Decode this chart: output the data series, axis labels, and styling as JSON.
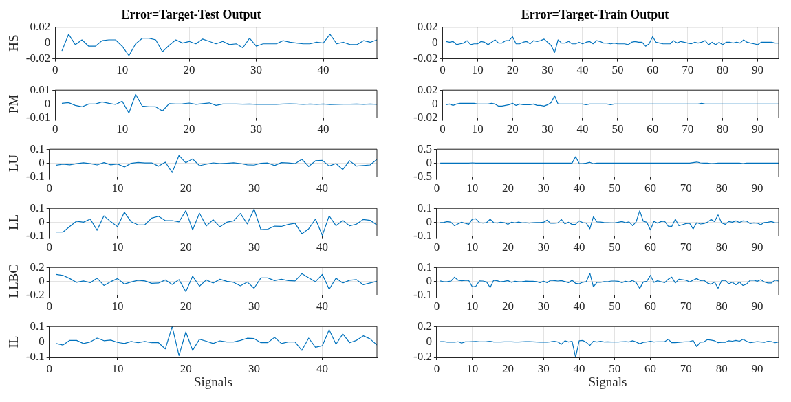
{
  "chart_data": [
    {
      "type": "line",
      "title": "Error=Target-Test Output",
      "ylabel": "HS",
      "color": "#0072bd",
      "grid": true,
      "xlim": [
        0,
        48
      ],
      "xticks": [
        0,
        10,
        20,
        30,
        40
      ],
      "ylim": [
        -0.02,
        0.02
      ],
      "yticks": [
        -0.02,
        0,
        0.02
      ],
      "x": [
        1,
        2,
        3,
        4,
        5,
        6,
        7,
        8,
        9,
        10,
        11,
        12,
        13,
        14,
        15,
        16,
        17,
        18,
        19,
        20,
        21,
        22,
        23,
        24,
        25,
        26,
        27,
        28,
        29,
        30,
        31,
        32,
        33,
        34,
        35,
        36,
        37,
        38,
        39,
        40,
        41,
        42,
        43,
        44,
        45,
        46,
        47,
        48
      ],
      "values": [
        -0.01,
        0.011,
        -0.002,
        0.004,
        -0.004,
        -0.004,
        0.003,
        0.004,
        0.004,
        -0.004,
        -0.016,
        -0.001,
        0.006,
        0.006,
        0.004,
        -0.011,
        -0.003,
        0.004,
        0,
        0.002,
        -0.001,
        0.005,
        0.002,
        -0.001,
        0.002,
        -0.002,
        -0.001,
        -0.006,
        0.006,
        -0.004,
        -0.001,
        -0.001,
        -0.001,
        0.003,
        0.001,
        0,
        -0.001,
        -0.001,
        0.001,
        0,
        0.011,
        -0.001,
        0.001,
        -0.002,
        -0.002,
        0.003,
        0.001,
        0.004
      ]
    },
    {
      "type": "line",
      "ylabel": "PM",
      "color": "#0072bd",
      "grid": true,
      "xlim": [
        0,
        48
      ],
      "xticks": [
        0,
        10,
        20,
        30,
        40
      ],
      "ylim": [
        -0.01,
        0.01
      ],
      "yticks": [
        -0.01,
        0,
        0.01
      ],
      "x": [
        1,
        2,
        3,
        4,
        5,
        6,
        7,
        8,
        9,
        10,
        11,
        12,
        13,
        14,
        15,
        16,
        17,
        18,
        19,
        20,
        21,
        22,
        23,
        24,
        25,
        26,
        27,
        28,
        29,
        30,
        31,
        32,
        33,
        34,
        35,
        36,
        37,
        38,
        39,
        40,
        41,
        42,
        43,
        44,
        45,
        46,
        47,
        48
      ],
      "values": [
        0.0005,
        0.001,
        -0.001,
        -0.002,
        0,
        0,
        0.0015,
        0.0005,
        -0.0003,
        0.002,
        -0.0065,
        0.007,
        -0.0015,
        -0.002,
        -0.002,
        -0.005,
        0.0003,
        0,
        0.0002,
        0.0007,
        -0.0002,
        0.0003,
        0.0008,
        -0.001,
        0,
        0,
        0,
        -0.0001,
        0,
        -0.0002,
        -0.0002,
        -0.0003,
        -0.0002,
        0,
        0.0001,
        0,
        -0.0003,
        0,
        -0.0002,
        0,
        -0.0004,
        -0.0003,
        -0.0001,
        -0.0001,
        0,
        -0.0002,
        0,
        -0.0002
      ]
    },
    {
      "type": "line",
      "ylabel": "LU",
      "color": "#0072bd",
      "grid": true,
      "xlim": [
        0,
        48
      ],
      "xticks": [
        0,
        10,
        20,
        30,
        40
      ],
      "ylim": [
        -0.1,
        0.1
      ],
      "yticks": [
        -0.1,
        0,
        0.1
      ],
      "x": [
        1,
        2,
        3,
        4,
        5,
        6,
        7,
        8,
        9,
        10,
        11,
        12,
        13,
        14,
        15,
        16,
        17,
        18,
        19,
        20,
        21,
        22,
        23,
        24,
        25,
        26,
        27,
        28,
        29,
        30,
        31,
        32,
        33,
        34,
        35,
        36,
        37,
        38,
        39,
        40,
        41,
        42,
        43,
        44,
        45,
        46,
        47,
        48
      ],
      "values": [
        -0.015,
        -0.008,
        -0.012,
        -0.004,
        0.003,
        -0.004,
        -0.013,
        0.004,
        -0.012,
        -0.006,
        -0.028,
        -0.001,
        0.005,
        0.001,
        0.002,
        -0.022,
        0.007,
        -0.068,
        0.055,
        0.003,
        0.03,
        -0.018,
        -0.008,
        0.002,
        -0.004,
        -0.001,
        0.003,
        -0.003,
        -0.012,
        -0.014,
        -0.001,
        0.001,
        -0.017,
        0.004,
        0.001,
        -0.004,
        0.028,
        -0.024,
        0.017,
        0.02,
        -0.021,
        -0.003,
        -0.046,
        0.017,
        -0.021,
        -0.017,
        -0.013,
        0.027
      ]
    },
    {
      "type": "line",
      "ylabel": "LL",
      "color": "#0072bd",
      "grid": true,
      "xlim": [
        0,
        48
      ],
      "xticks": [
        0,
        10,
        20,
        30,
        40
      ],
      "ylim": [
        -0.1,
        0.1
      ],
      "yticks": [
        -0.1,
        0,
        0.1
      ],
      "x": [
        1,
        2,
        3,
        4,
        5,
        6,
        7,
        8,
        9,
        10,
        11,
        12,
        13,
        14,
        15,
        16,
        17,
        18,
        19,
        20,
        21,
        22,
        23,
        24,
        25,
        26,
        27,
        28,
        29,
        30,
        31,
        32,
        33,
        34,
        35,
        36,
        37,
        38,
        39,
        40,
        41,
        42,
        43,
        44,
        45,
        46,
        47,
        48
      ],
      "values": [
        -0.07,
        -0.071,
        -0.03,
        0.008,
        0,
        0.023,
        -0.058,
        0.046,
        0.004,
        -0.032,
        0.072,
        0.003,
        -0.019,
        -0.018,
        0.03,
        0.043,
        0.012,
        0.012,
        0.003,
        0.083,
        -0.055,
        0.065,
        -0.027,
        0.018,
        -0.033,
        0,
        0.01,
        0.063,
        -0.012,
        0.095,
        -0.053,
        -0.05,
        -0.028,
        -0.03,
        -0.016,
        -0.007,
        -0.083,
        -0.047,
        0.023,
        -0.095,
        0.046,
        -0.025,
        0.013,
        -0.026,
        -0.014,
        0.02,
        0.014,
        -0.02
      ]
    },
    {
      "type": "line",
      "ylabel": "LLBC",
      "color": "#0072bd",
      "grid": true,
      "xlim": [
        0,
        48
      ],
      "xticks": [
        0,
        10,
        20,
        30,
        40
      ],
      "ylim": [
        -0.2,
        0.2
      ],
      "yticks": [
        -0.2,
        0,
        0.2
      ],
      "x": [
        1,
        2,
        3,
        4,
        5,
        6,
        7,
        8,
        9,
        10,
        11,
        12,
        13,
        14,
        15,
        16,
        17,
        18,
        19,
        20,
        21,
        22,
        23,
        24,
        25,
        26,
        27,
        28,
        29,
        30,
        31,
        32,
        33,
        34,
        35,
        36,
        37,
        38,
        39,
        40,
        41,
        42,
        43,
        44,
        45,
        46,
        47,
        48
      ],
      "values": [
        0.1,
        0.085,
        0.04,
        -0.015,
        0.005,
        -0.02,
        0.045,
        -0.06,
        -0.005,
        0.04,
        -0.04,
        -0.01,
        0.015,
        0.005,
        -0.03,
        -0.025,
        0.02,
        -0.045,
        0.025,
        -0.15,
        0.075,
        -0.07,
        0.02,
        -0.025,
        0.03,
        0,
        -0.015,
        -0.065,
        -0.01,
        -0.1,
        0.05,
        0.05,
        0.01,
        0.03,
        0.01,
        0.005,
        0.11,
        0.05,
        -0.005,
        0.1,
        -0.115,
        0.045,
        -0.025,
        0.015,
        0.025,
        -0.05,
        -0.025,
        0
      ]
    },
    {
      "type": "line",
      "ylabel": "IL",
      "xlabel": "Signals",
      "color": "#0072bd",
      "grid": true,
      "xlim": [
        0,
        48
      ],
      "xticks": [
        0,
        10,
        20,
        30,
        40
      ],
      "ylim": [
        -0.1,
        0.1
      ],
      "yticks": [
        -0.1,
        0,
        0.1
      ],
      "x": [
        1,
        2,
        3,
        4,
        5,
        6,
        7,
        8,
        9,
        10,
        11,
        12,
        13,
        14,
        15,
        16,
        17,
        18,
        19,
        20,
        21,
        22,
        23,
        24,
        25,
        26,
        27,
        28,
        29,
        30,
        31,
        32,
        33,
        34,
        35,
        36,
        37,
        38,
        39,
        40,
        41,
        42,
        43,
        44,
        45,
        46,
        47,
        48
      ],
      "values": [
        -0.01,
        -0.02,
        0.01,
        0.01,
        -0.01,
        0,
        0.025,
        0.008,
        0.012,
        -0.003,
        -0.01,
        0.003,
        -0.005,
        0.003,
        -0.005,
        -0.005,
        -0.045,
        0.1,
        -0.088,
        0.065,
        -0.055,
        0.018,
        0.005,
        -0.01,
        0.007,
        0,
        0,
        0.01,
        0.024,
        0.022,
        -0.005,
        -0.005,
        0.03,
        -0.01,
        0,
        0,
        -0.055,
        0.025,
        -0.035,
        -0.025,
        0.08,
        -0.015,
        0.052,
        -0.005,
        0.01,
        0.04,
        0.02,
        -0.02
      ]
    },
    {
      "type": "line",
      "title": "Error=Target-Train Output",
      "color": "#0072bd",
      "grid": true,
      "xlim": [
        0,
        96
      ],
      "xticks": [
        0,
        10,
        20,
        30,
        40,
        50,
        60,
        70,
        80,
        90
      ],
      "ylim": [
        -0.02,
        0.02
      ],
      "yticks": [
        -0.02,
        0,
        0.02
      ],
      "x": [
        1,
        2,
        3,
        4,
        5,
        6,
        7,
        8,
        9,
        10,
        11,
        12,
        13,
        14,
        15,
        16,
        17,
        18,
        19,
        20,
        21,
        22,
        23,
        24,
        25,
        26,
        27,
        28,
        29,
        30,
        31,
        32,
        33,
        34,
        35,
        36,
        37,
        38,
        39,
        40,
        41,
        42,
        43,
        44,
        45,
        46,
        47,
        48,
        49,
        50,
        51,
        52,
        53,
        54,
        55,
        56,
        57,
        58,
        59,
        60,
        61,
        62,
        63,
        64,
        65,
        66,
        67,
        68,
        69,
        70,
        71,
        72,
        73,
        74,
        75,
        76,
        77,
        78,
        79,
        80,
        81,
        82,
        83,
        84,
        85,
        86,
        87,
        88,
        89,
        90,
        91,
        92,
        93,
        94,
        95,
        96
      ],
      "values": [
        0.002,
        0.001,
        0.002,
        -0.002,
        -0.001,
        0,
        0.003,
        -0.002,
        -0.001,
        -0.001,
        0.002,
        0.001,
        -0.002,
        0.001,
        0.004,
        0,
        0,
        0.003,
        0.003,
        0.008,
        -0.001,
        -0.001,
        0.001,
        0.002,
        -0.001,
        0.003,
        0.002,
        0.003,
        0.005,
        0.001,
        -0.003,
        -0.012,
        0.004,
        0,
        0,
        0.002,
        -0.001,
        -0.001,
        0.001,
        -0.001,
        0.001,
        0.002,
        -0.001,
        0.003,
        0.002,
        0,
        0,
        -0.001,
        0,
        -0.001,
        -0.001,
        -0.001,
        -0.002,
        0.001,
        0.002,
        0.001,
        0.001,
        -0.004,
        -0.001,
        0.008,
        0.001,
        0,
        -0.001,
        -0.001,
        -0.001,
        0.003,
        0,
        0.002,
        0.001,
        0,
        -0.001,
        0.001,
        0,
        0.001,
        0.003,
        -0.002,
        0.001,
        -0.002,
        0.001,
        -0.002,
        0.001,
        0.001,
        0,
        0.001,
        0,
        0.004,
        0.001,
        0,
        -0.001,
        -0.002,
        0.001,
        0.001,
        0.001,
        0.001,
        0,
        0
      ]
    },
    {
      "type": "line",
      "color": "#0072bd",
      "grid": true,
      "xlim": [
        0,
        96
      ],
      "xticks": [
        0,
        10,
        20,
        30,
        40,
        50,
        60,
        70,
        80,
        90
      ],
      "ylim": [
        -0.02,
        0.02
      ],
      "yticks": [
        -0.02,
        0,
        0.02
      ],
      "x": [
        1,
        2,
        3,
        4,
        5,
        6,
        7,
        8,
        9,
        10,
        11,
        12,
        13,
        14,
        15,
        16,
        17,
        18,
        19,
        20,
        21,
        22,
        23,
        24,
        25,
        26,
        27,
        28,
        29,
        30,
        31,
        32,
        33,
        34,
        35,
        36,
        37,
        38,
        39,
        40,
        41,
        42,
        43,
        44,
        45,
        46,
        47,
        48,
        49,
        50,
        51,
        52,
        53,
        54,
        55,
        56,
        57,
        58,
        59,
        60,
        61,
        62,
        63,
        64,
        65,
        66,
        67,
        68,
        69,
        70,
        71,
        72,
        73,
        74,
        75,
        76,
        77,
        78,
        79,
        80,
        81,
        82,
        83,
        84,
        85,
        86,
        87,
        88,
        89,
        90,
        91,
        92,
        93,
        94,
        95,
        96
      ],
      "values": [
        -0.001,
        0,
        -0.002,
        0,
        0.001,
        0.001,
        0.001,
        0.001,
        0.001,
        0,
        0,
        0,
        0,
        0.001,
        0,
        -0.003,
        -0.003,
        -0.002,
        -0.001,
        0.001,
        -0.002,
        0,
        -0.001,
        -0.001,
        -0.001,
        0,
        -0.002,
        -0.002,
        -0.003,
        -0.001,
        0.002,
        0.012,
        0,
        0,
        0,
        0,
        0,
        0,
        0,
        0,
        -0.001,
        0,
        0,
        0,
        0,
        0,
        0,
        -0.001,
        0,
        0,
        0,
        0,
        0,
        0,
        0,
        0,
        0,
        0,
        0,
        0,
        0,
        0,
        0,
        0,
        0,
        0,
        0,
        0,
        0,
        0,
        0,
        0,
        0,
        0.001,
        0,
        0,
        0,
        0,
        0,
        0,
        0,
        0,
        0,
        0,
        0,
        0,
        0,
        0,
        0,
        0,
        0,
        0,
        0,
        0,
        0,
        0
      ]
    },
    {
      "type": "line",
      "color": "#0072bd",
      "grid": true,
      "xlim": [
        0,
        96
      ],
      "xticks": [
        0,
        10,
        20,
        30,
        40,
        50,
        60,
        70,
        80,
        90
      ],
      "ylim": [
        -0.5,
        0.5
      ],
      "yticks": [
        -0.5,
        0,
        0.5
      ],
      "x": [
        1,
        2,
        3,
        4,
        5,
        6,
        7,
        8,
        9,
        10,
        11,
        12,
        13,
        14,
        15,
        16,
        17,
        18,
        19,
        20,
        21,
        22,
        23,
        24,
        25,
        26,
        27,
        28,
        29,
        30,
        31,
        32,
        33,
        34,
        35,
        36,
        37,
        38,
        39,
        40,
        41,
        42,
        43,
        44,
        45,
        46,
        47,
        48,
        49,
        50,
        51,
        52,
        53,
        54,
        55,
        56,
        57,
        58,
        59,
        60,
        61,
        62,
        63,
        64,
        65,
        66,
        67,
        68,
        69,
        70,
        71,
        72,
        73,
        74,
        75,
        76,
        77,
        78,
        79,
        80,
        81,
        82,
        83,
        84,
        85,
        86,
        87,
        88,
        89,
        90,
        91,
        92,
        93,
        94,
        95,
        96
      ],
      "values": [
        0,
        0,
        0,
        0,
        0,
        0,
        0,
        0,
        0,
        0.01,
        0,
        0,
        0,
        0,
        0,
        0,
        0,
        0,
        0,
        0,
        0,
        0,
        0,
        0,
        0,
        0,
        0,
        0,
        0,
        0,
        0,
        0,
        0,
        0,
        0,
        0,
        0,
        0,
        0.23,
        -0.01,
        -0.02,
        0,
        0.03,
        -0.02,
        0,
        0,
        0,
        0,
        0,
        0,
        0,
        0,
        0,
        0,
        0,
        0,
        0,
        0,
        0,
        0,
        0,
        0,
        0,
        0,
        0,
        0,
        0,
        0,
        0,
        0,
        0,
        0.02,
        0.04,
        0.01,
        0,
        0,
        -0.02,
        -0.01,
        0,
        0,
        0,
        0,
        0,
        0,
        0,
        -0.02,
        0,
        0,
        0,
        0,
        0,
        0,
        0,
        0,
        0,
        0
      ]
    },
    {
      "type": "line",
      "color": "#0072bd",
      "grid": true,
      "xlim": [
        0,
        96
      ],
      "xticks": [
        0,
        10,
        20,
        30,
        40,
        50,
        60,
        70,
        80,
        90
      ],
      "ylim": [
        -0.1,
        0.1
      ],
      "yticks": [
        -0.1,
        0,
        0.1
      ],
      "x": [
        1,
        2,
        3,
        4,
        5,
        6,
        7,
        8,
        9,
        10,
        11,
        12,
        13,
        14,
        15,
        16,
        17,
        18,
        19,
        20,
        21,
        22,
        23,
        24,
        25,
        26,
        27,
        28,
        29,
        30,
        31,
        32,
        33,
        34,
        35,
        36,
        37,
        38,
        39,
        40,
        41,
        42,
        43,
        44,
        45,
        46,
        47,
        48,
        49,
        50,
        51,
        52,
        53,
        54,
        55,
        56,
        57,
        58,
        59,
        60,
        61,
        62,
        63,
        64,
        65,
        66,
        67,
        68,
        69,
        70,
        71,
        72,
        73,
        74,
        75,
        76,
        77,
        78,
        79,
        80,
        81,
        82,
        83,
        84,
        85,
        86,
        87,
        88,
        89,
        90,
        91,
        92,
        93,
        94,
        95,
        96
      ],
      "values": [
        -0.002,
        -0.001,
        0.005,
        0,
        -0.025,
        -0.012,
        0,
        -0.008,
        -0.015,
        0.022,
        0.025,
        -0.003,
        -0.006,
        -0.003,
        0.022,
        -0.003,
        -0.006,
        0,
        -0.003,
        -0.015,
        0,
        -0.005,
        0.001,
        -0.005,
        -0.004,
        -0.006,
        -0.003,
        -0.002,
        -0.002,
        0,
        0.015,
        -0.008,
        -0.008,
        -0.005,
        0.02,
        -0.012,
        0,
        -0.016,
        -0.015,
        0.01,
        -0.003,
        -0.006,
        -0.047,
        0.04,
        0.002,
        0.001,
        -0.002,
        -0.003,
        -0.005,
        -0.005,
        0,
        0.005,
        -0.003,
        0.003,
        -0.025,
        0.003,
        0.083,
        0.007,
        0,
        -0.055,
        0.007,
        -0.007,
        0.005,
        0.007,
        -0.028,
        -0.03,
        0.022,
        -0.025,
        -0.018,
        -0.01,
        -0.007,
        -0.048,
        -0.003,
        -0.013,
        -0.01,
        0,
        0.02,
        0.005,
        0.053,
        -0.005,
        -0.015,
        0.005,
        0,
        0.01,
        -0.002,
        0.01,
        0.008,
        -0.01,
        -0.005,
        -0.007,
        -0.018,
        -0.002,
        0,
        0.005,
        -0.005,
        -0.005
      ]
    },
    {
      "type": "line",
      "color": "#0072bd",
      "grid": true,
      "xlim": [
        0,
        96
      ],
      "xticks": [
        0,
        10,
        20,
        30,
        40,
        50,
        60,
        70,
        80,
        90
      ],
      "ylim": [
        -0.1,
        0.1
      ],
      "yticks": [
        -0.1,
        0,
        0.1
      ],
      "x": [
        1,
        2,
        3,
        4,
        5,
        6,
        7,
        8,
        9,
        10,
        11,
        12,
        13,
        14,
        15,
        16,
        17,
        18,
        19,
        20,
        21,
        22,
        23,
        24,
        25,
        26,
        27,
        28,
        29,
        30,
        31,
        32,
        33,
        34,
        35,
        36,
        37,
        38,
        39,
        40,
        41,
        42,
        43,
        44,
        45,
        46,
        47,
        48,
        49,
        50,
        51,
        52,
        53,
        54,
        55,
        56,
        57,
        58,
        59,
        60,
        61,
        62,
        63,
        64,
        65,
        66,
        67,
        68,
        69,
        70,
        71,
        72,
        73,
        74,
        75,
        76,
        77,
        78,
        79,
        80,
        81,
        82,
        83,
        84,
        85,
        86,
        87,
        88,
        89,
        90,
        91,
        92,
        93,
        94,
        95,
        96
      ],
      "values": [
        0.003,
        -0.003,
        -0.002,
        0.002,
        0.03,
        0.008,
        0.004,
        0.006,
        0.006,
        -0.04,
        -0.035,
        0.003,
        0.002,
        -0.005,
        -0.045,
        0.008,
        0.004,
        -0.004,
        0,
        0.005,
        -0.008,
        0,
        -0.003,
        -0.002,
        0.001,
        0,
        0,
        -0.002,
        -0.01,
        0,
        -0.01,
        0.008,
        0.005,
        0.002,
        0.005,
        -0.002,
        -0.01,
        0.008,
        -0.015,
        -0.018,
        -0.007,
        -0.002,
        0.058,
        -0.04,
        -0.007,
        -0.008,
        -0.002,
        -0.003,
        0.002,
        0.002,
        0,
        -0.01,
        0,
        -0.006,
        0.007,
        -0.01,
        -0.052,
        -0.005,
        0,
        0.043,
        -0.008,
        0.004,
        -0.003,
        -0.01,
        0.015,
        0.03,
        -0.012,
        0.015,
        0.012,
        0.008,
        -0.005,
        0.008,
        0.02,
        0.005,
        0.008,
        -0.012,
        -0.022,
        -0.005,
        -0.05,
        0.005,
        0.008,
        -0.018,
        -0.007,
        -0.025,
        -0.005,
        -0.03,
        -0.02,
        0.008,
        0.008,
        0,
        0.012,
        -0.005,
        -0.012,
        -0.012,
        0.008,
        0.002
      ]
    },
    {
      "type": "line",
      "xlabel": "Signals",
      "color": "#0072bd",
      "grid": true,
      "xlim": [
        0,
        96
      ],
      "xticks": [
        0,
        10,
        20,
        30,
        40,
        50,
        60,
        70,
        80,
        90
      ],
      "ylim": [
        -0.2,
        0.2
      ],
      "yticks": [
        -0.2,
        0,
        0.2
      ],
      "x": [
        1,
        2,
        3,
        4,
        5,
        6,
        7,
        8,
        9,
        10,
        11,
        12,
        13,
        14,
        15,
        16,
        17,
        18,
        19,
        20,
        21,
        22,
        23,
        24,
        25,
        26,
        27,
        28,
        29,
        30,
        31,
        32,
        33,
        34,
        35,
        36,
        37,
        38,
        39,
        40,
        41,
        42,
        43,
        44,
        45,
        46,
        47,
        48,
        49,
        50,
        51,
        52,
        53,
        54,
        55,
        56,
        57,
        58,
        59,
        60,
        61,
        62,
        63,
        64,
        65,
        66,
        67,
        68,
        69,
        70,
        71,
        72,
        73,
        74,
        75,
        76,
        77,
        78,
        79,
        80,
        81,
        82,
        83,
        84,
        85,
        86,
        87,
        88,
        89,
        90,
        91,
        92,
        93,
        94,
        95,
        96
      ],
      "values": [
        0.005,
        0.005,
        -0.003,
        0,
        -0.003,
        0.003,
        -0.015,
        0.002,
        0.003,
        0.005,
        0.007,
        0.002,
        0.002,
        0.005,
        0.01,
        0,
        0,
        0,
        0.002,
        0.003,
        0.002,
        0,
        0,
        0.002,
        0.005,
        0.005,
        0.002,
        0,
        -0.003,
        0,
        -0.002,
        0.002,
        0.01,
        0,
        -0.03,
        0.015,
        0,
        0.01,
        -0.2,
        0.015,
        0.02,
        -0.005,
        -0.045,
        0.01,
        0,
        0.01,
        0,
        0.002,
        0,
        0,
        0,
        0.003,
        0.005,
        0,
        0.015,
        0,
        -0.025,
        -0.005,
        0,
        0.01,
        0,
        0.003,
        0.003,
        0.003,
        0.035,
        -0.01,
        -0.01,
        -0.005,
        0,
        0.003,
        0.005,
        0.018,
        -0.06,
        -0.003,
        0,
        0.03,
        0.025,
        0.015,
        -0.01,
        -0.005,
        -0.005,
        0.015,
        0.01,
        0.02,
        0.01,
        0.035,
        0.01,
        -0.01,
        -0.003,
        0.005,
        0,
        -0.005,
        0.01,
        0.005,
        -0.01,
        0
      ]
    }
  ]
}
